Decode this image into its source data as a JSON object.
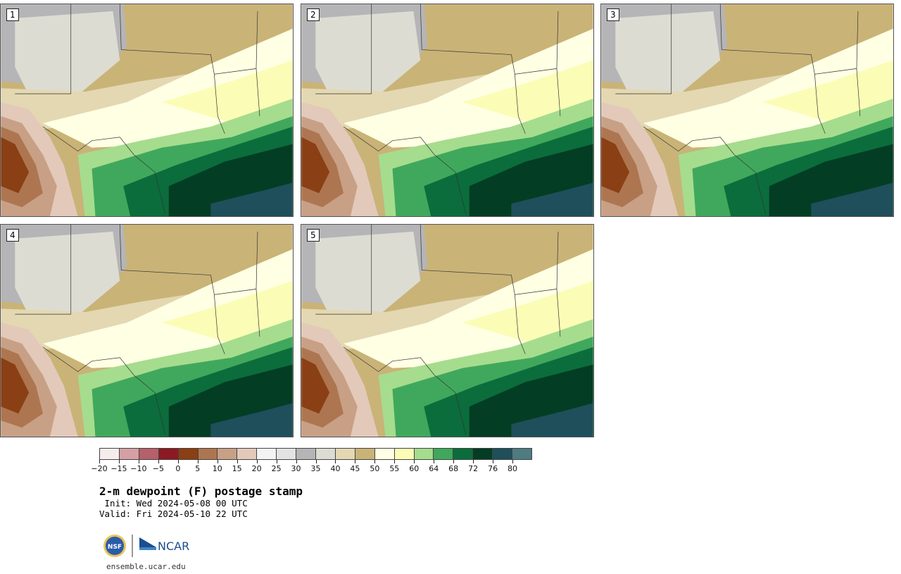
{
  "panels": [
    {
      "label": "1"
    },
    {
      "label": "2"
    },
    {
      "label": "3"
    },
    {
      "label": "4"
    },
    {
      "label": "5"
    }
  ],
  "colorbar": {
    "ticks": [
      "−20",
      "−15",
      "−10",
      "−5",
      "0",
      "5",
      "10",
      "15",
      "20",
      "25",
      "30",
      "35",
      "40",
      "45",
      "50",
      "55",
      "60",
      "64",
      "68",
      "72",
      "76",
      "80"
    ],
    "colors": [
      "#f7ecec",
      "#d5a0a5",
      "#b5606a",
      "#8c1a24",
      "#8a3f14",
      "#ad7650",
      "#c8a086",
      "#e3c9ba",
      "#f3f3f3",
      "#e3e3e3",
      "#b5b5b8",
      "#dcdcd2",
      "#e3d8b2",
      "#c9b377",
      "#ffffe4",
      "#fbfdb6",
      "#a6dc8e",
      "#40a85c",
      "#0b6d3c",
      "#033d24",
      "#1e4f5b",
      "#4f7b82"
    ]
  },
  "title": "2-m dewpoint (F) postage stamp",
  "init": " Init: Wed 2024-05-08 00 UTC",
  "valid": "Valid: Fri 2024-05-10 22 UTC",
  "logos": {
    "nsf": "NSF",
    "ncar": "NCAR"
  },
  "website": "ensemble.ucar.edu"
}
